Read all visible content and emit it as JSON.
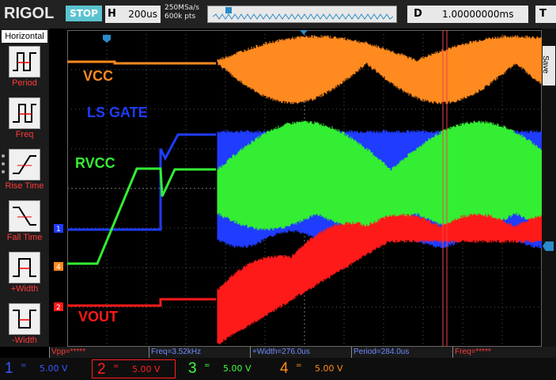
{
  "topbar": {
    "logo": "RIGOL",
    "run_state": "STOP",
    "timebase_key": "H",
    "timebase_value": "200us",
    "sample_rate": "250MSa/s",
    "memory_depth": "600k pts",
    "delay_key": "D",
    "delay_value": "1.00000000ms",
    "trigger_key": "T"
  },
  "menu": {
    "title": "Horizontal",
    "items": [
      {
        "label": "Period",
        "icon": "period-icon"
      },
      {
        "label": "Freq",
        "icon": "freq-icon"
      },
      {
        "label": "Rise Time",
        "icon": "rise-time-icon"
      },
      {
        "label": "Fall Time",
        "icon": "fall-time-icon"
      },
      {
        "label": "+Width",
        "icon": "pos-width-icon"
      },
      {
        "label": "-Width",
        "icon": "neg-width-icon"
      }
    ]
  },
  "side": {
    "save_label": "Save"
  },
  "waveform_labels": {
    "vcc": "VCC",
    "ls_gate": "LS GATE",
    "rvcc": "RVCC",
    "vout": "VOUT"
  },
  "channel_markers": [
    "1",
    "4",
    "2"
  ],
  "measurements": [
    {
      "text": "Vpp=*****",
      "color": "#ff3b3b"
    },
    {
      "text": "Freq=3.52kHz",
      "color": "#6f8cff"
    },
    {
      "text": "+Width=276.0us",
      "color": "#6f8cff"
    },
    {
      "text": "Period=284.0us",
      "color": "#6f8cff"
    },
    {
      "text": "Freq=*****",
      "color": "#ff3b3b"
    }
  ],
  "channels": [
    {
      "num": "1",
      "coupling": "=",
      "vdiv": "5.00 V",
      "color": "#3a58ff"
    },
    {
      "num": "2",
      "coupling": "=",
      "vdiv": "5.00 V",
      "color": "#ff2020"
    },
    {
      "num": "3",
      "coupling": "=",
      "vdiv": "5.00 V",
      "color": "#3cff3c"
    },
    {
      "num": "4",
      "coupling": "=",
      "vdiv": "5.00 V",
      "color": "#ff8c1a"
    }
  ],
  "colors": {
    "ch1": "#1f3cff",
    "ch2": "#ff1a1a",
    "ch3": "#33ee33",
    "ch4": "#ff8a1f",
    "accent": "#5bc3d0"
  }
}
